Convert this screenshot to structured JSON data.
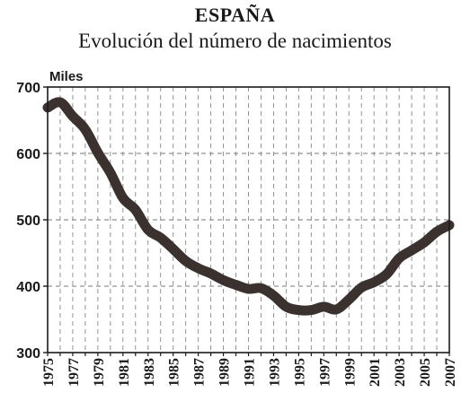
{
  "chart_data": {
    "type": "line",
    "title": "ESPAÑA",
    "subtitle": "Evolución del número de nacimientos",
    "ylabel": "Miles",
    "xlabel": "",
    "ylim": [
      300,
      700
    ],
    "xlim": [
      1975,
      2007
    ],
    "yticks": [
      "300",
      "400",
      "500",
      "600",
      "700"
    ],
    "xticks": [
      "1975",
      "1977",
      "1979",
      "1981",
      "1983",
      "1985",
      "1987",
      "1989",
      "1991",
      "1993",
      "1995",
      "1997",
      "1999",
      "2001",
      "2003",
      "2005",
      "2007"
    ],
    "grid": true,
    "line_color": "#3b3230",
    "x": [
      1975,
      1976,
      1977,
      1978,
      1979,
      1980,
      1981,
      1982,
      1983,
      1984,
      1985,
      1986,
      1987,
      1988,
      1989,
      1990,
      1991,
      1992,
      1993,
      1994,
      1995,
      1996,
      1997,
      1998,
      1999,
      2000,
      2001,
      2002,
      2003,
      2004,
      2005,
      2006,
      2007
    ],
    "values": [
      669,
      677,
      656,
      636,
      601,
      571,
      533,
      515,
      485,
      473,
      456,
      438,
      427,
      419,
      409,
      402,
      396,
      397,
      386,
      369,
      364,
      364,
      369,
      365,
      380,
      398,
      406,
      418,
      442,
      454,
      466,
      482,
      492
    ]
  }
}
